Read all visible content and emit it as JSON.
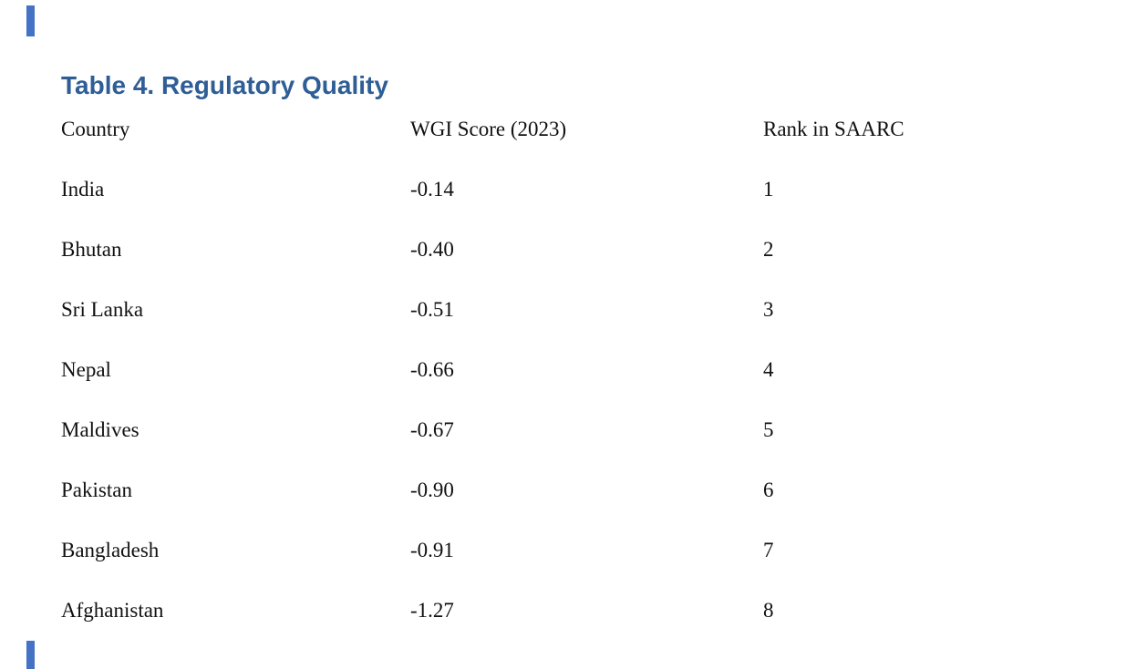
{
  "page": {
    "title": "Table 4. Regulatory Quality"
  },
  "theme": {
    "title_color": "#2f5d96",
    "edge_marker_color": "#4472c4",
    "text_color": "#111111",
    "background_color": "#ffffff"
  },
  "table": {
    "headers": [
      "Country",
      "WGI Score (2023)",
      "Rank in SAARC"
    ],
    "rows": [
      {
        "country": "India",
        "wgi_score": "-0.14",
        "rank": "1"
      },
      {
        "country": "Bhutan",
        "wgi_score": "-0.40",
        "rank": "2"
      },
      {
        "country": "Sri Lanka",
        "wgi_score": "-0.51",
        "rank": "3"
      },
      {
        "country": "Nepal",
        "wgi_score": "-0.66",
        "rank": "4"
      },
      {
        "country": "Maldives",
        "wgi_score": "-0.67",
        "rank": "5"
      },
      {
        "country": "Pakistan",
        "wgi_score": "-0.90",
        "rank": "6"
      },
      {
        "country": "Bangladesh",
        "wgi_score": "-0.91",
        "rank": "7"
      },
      {
        "country": "Afghanistan",
        "wgi_score": "-1.27",
        "rank": "8"
      }
    ]
  }
}
